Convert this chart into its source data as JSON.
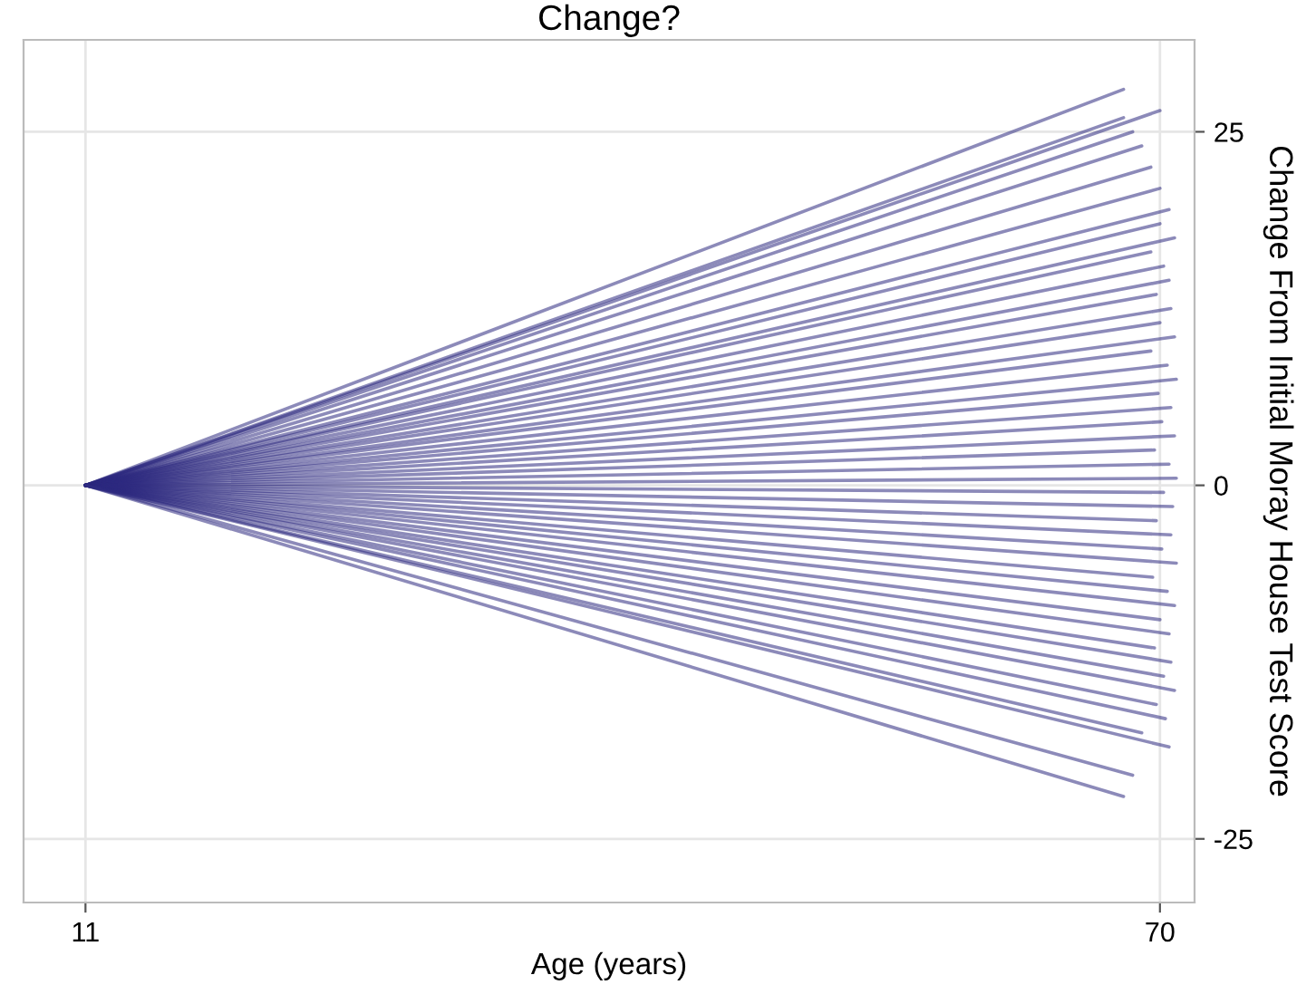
{
  "chart_data": {
    "type": "line",
    "title": "Change?",
    "xlabel": "Age (years)",
    "ylabel": "Change From Initial Moray House Test Score",
    "xlim": [
      7.6,
      71.9
    ],
    "ylim": [
      -29.5,
      31.5
    ],
    "xticks": [
      11,
      70
    ],
    "yticks": [
      -25,
      0,
      25
    ],
    "grid": true,
    "marker": "none",
    "line_style": "solid",
    "series": [
      {
        "color": "#2e2a80",
        "x": [
          11,
          68
        ],
        "values": [
          0,
          28
        ]
      },
      {
        "color": "#2e2a80",
        "x": [
          11,
          70
        ],
        "values": [
          0,
          26.5
        ]
      },
      {
        "color": "#2e2a80",
        "x": [
          11,
          68
        ],
        "values": [
          0,
          26
        ]
      },
      {
        "color": "#2e2a80",
        "x": [
          11,
          68.5
        ],
        "values": [
          0,
          25
        ]
      },
      {
        "color": "#2e2a80",
        "x": [
          11,
          69
        ],
        "values": [
          0,
          24
        ]
      },
      {
        "color": "#2e2a80",
        "x": [
          11,
          69.5
        ],
        "values": [
          0,
          22.5
        ]
      },
      {
        "color": "#2e2a80",
        "x": [
          11,
          70
        ],
        "values": [
          0,
          21
        ]
      },
      {
        "color": "#2e2a80",
        "x": [
          11,
          70.5
        ],
        "values": [
          0,
          19.5
        ]
      },
      {
        "color": "#2e2a80",
        "x": [
          11,
          70
        ],
        "values": [
          0,
          18.5
        ]
      },
      {
        "color": "#2e2a80",
        "x": [
          11,
          70.8
        ],
        "values": [
          0,
          17.5
        ]
      },
      {
        "color": "#2e2a80",
        "x": [
          11,
          69.5
        ],
        "values": [
          0,
          16.5
        ]
      },
      {
        "color": "#2e2a80",
        "x": [
          11,
          70.2
        ],
        "values": [
          0,
          15.5
        ]
      },
      {
        "color": "#2e2a80",
        "x": [
          11,
          70.5
        ],
        "values": [
          0,
          14.5
        ]
      },
      {
        "color": "#2e2a80",
        "x": [
          11,
          69.8
        ],
        "values": [
          0,
          13.5
        ]
      },
      {
        "color": "#2e2a80",
        "x": [
          11,
          70.6
        ],
        "values": [
          0,
          12.5
        ]
      },
      {
        "color": "#2e2a80",
        "x": [
          11,
          70
        ],
        "values": [
          0,
          11.5
        ]
      },
      {
        "color": "#2e2a80",
        "x": [
          11,
          70.8
        ],
        "values": [
          0,
          10.5
        ]
      },
      {
        "color": "#2e2a80",
        "x": [
          11,
          69.5
        ],
        "values": [
          0,
          9.5
        ]
      },
      {
        "color": "#2e2a80",
        "x": [
          11,
          70.4
        ],
        "values": [
          0,
          8.5
        ]
      },
      {
        "color": "#2e2a80",
        "x": [
          11,
          70.9
        ],
        "values": [
          0,
          7.5
        ]
      },
      {
        "color": "#2e2a80",
        "x": [
          11,
          69.9
        ],
        "values": [
          0,
          6.5
        ]
      },
      {
        "color": "#2e2a80",
        "x": [
          11,
          70.6
        ],
        "values": [
          0,
          5.5
        ]
      },
      {
        "color": "#2e2a80",
        "x": [
          11,
          70.1
        ],
        "values": [
          0,
          4.5
        ]
      },
      {
        "color": "#2e2a80",
        "x": [
          11,
          70.8
        ],
        "values": [
          0,
          3.5
        ]
      },
      {
        "color": "#2e2a80",
        "x": [
          11,
          69.7
        ],
        "values": [
          0,
          2.5
        ]
      },
      {
        "color": "#2e2a80",
        "x": [
          11,
          70.5
        ],
        "values": [
          0,
          1.5
        ]
      },
      {
        "color": "#2e2a80",
        "x": [
          11,
          70.9
        ],
        "values": [
          0,
          0.5
        ]
      },
      {
        "color": "#2e2a80",
        "x": [
          11,
          70.2
        ],
        "values": [
          0,
          -0.5
        ]
      },
      {
        "color": "#2e2a80",
        "x": [
          11,
          70.7
        ],
        "values": [
          0,
          -1.5
        ]
      },
      {
        "color": "#2e2a80",
        "x": [
          11,
          69.8
        ],
        "values": [
          0,
          -2.5
        ]
      },
      {
        "color": "#2e2a80",
        "x": [
          11,
          70.6
        ],
        "values": [
          0,
          -3.5
        ]
      },
      {
        "color": "#2e2a80",
        "x": [
          11,
          70.1
        ],
        "values": [
          0,
          -4.5
        ]
      },
      {
        "color": "#2e2a80",
        "x": [
          11,
          70.9
        ],
        "values": [
          0,
          -5.5
        ]
      },
      {
        "color": "#2e2a80",
        "x": [
          11,
          69.6
        ],
        "values": [
          0,
          -6.5
        ]
      },
      {
        "color": "#2e2a80",
        "x": [
          11,
          70.4
        ],
        "values": [
          0,
          -7.5
        ]
      },
      {
        "color": "#2e2a80",
        "x": [
          11,
          70.8
        ],
        "values": [
          0,
          -8.5
        ]
      },
      {
        "color": "#2e2a80",
        "x": [
          11,
          70
        ],
        "values": [
          0,
          -9.5
        ]
      },
      {
        "color": "#2e2a80",
        "x": [
          11,
          70.5
        ],
        "values": [
          0,
          -10.5
        ]
      },
      {
        "color": "#2e2a80",
        "x": [
          11,
          69.7
        ],
        "values": [
          0,
          -11.5
        ]
      },
      {
        "color": "#2e2a80",
        "x": [
          11,
          70.6
        ],
        "values": [
          0,
          -12.5
        ]
      },
      {
        "color": "#2e2a80",
        "x": [
          11,
          70.2
        ],
        "values": [
          0,
          -13.5
        ]
      },
      {
        "color": "#2e2a80",
        "x": [
          11,
          70.8
        ],
        "values": [
          0,
          -14.5
        ]
      },
      {
        "color": "#2e2a80",
        "x": [
          11,
          69.8
        ],
        "values": [
          0,
          -15.5
        ]
      },
      {
        "color": "#2e2a80",
        "x": [
          11,
          70.3
        ],
        "values": [
          0,
          -16.5
        ]
      },
      {
        "color": "#2e2a80",
        "x": [
          11,
          69
        ],
        "values": [
          0,
          -17.5
        ]
      },
      {
        "color": "#2e2a80",
        "x": [
          11,
          70.5
        ],
        "values": [
          0,
          -18.5
        ]
      },
      {
        "color": "#2e2a80",
        "x": [
          11,
          68.5
        ],
        "values": [
          0,
          -20.5
        ]
      },
      {
        "color": "#2e2a80",
        "x": [
          11,
          68
        ],
        "values": [
          0,
          -22
        ]
      }
    ]
  }
}
